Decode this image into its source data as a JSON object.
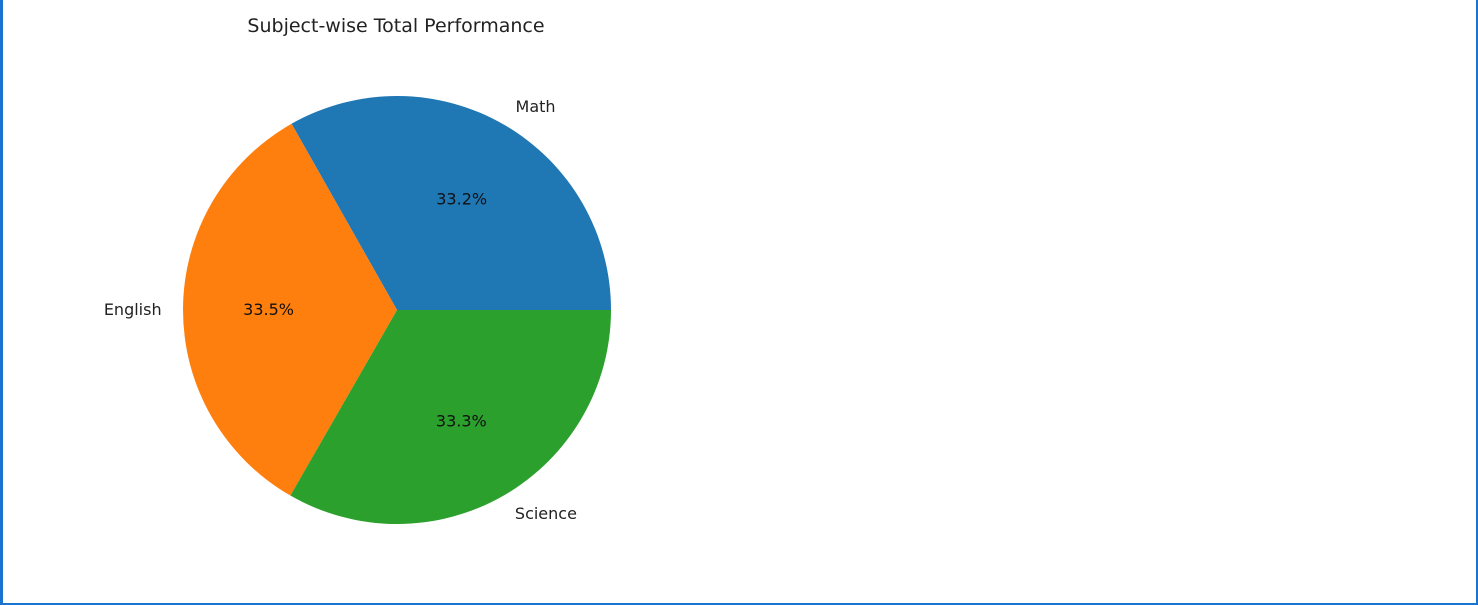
{
  "chart_data": {
    "type": "pie",
    "title": "Subject-wise Total Performance",
    "categories": [
      "Math",
      "English",
      "Science"
    ],
    "values": [
      33.2,
      33.5,
      33.3
    ],
    "percent_labels": [
      "33.2%",
      "33.5%",
      "33.3%"
    ],
    "colors": [
      "#1f77b4",
      "#ff7f0e",
      "#2ca02c"
    ],
    "start_angle": 0,
    "direction": "counterclockwise",
    "legend": "none"
  }
}
